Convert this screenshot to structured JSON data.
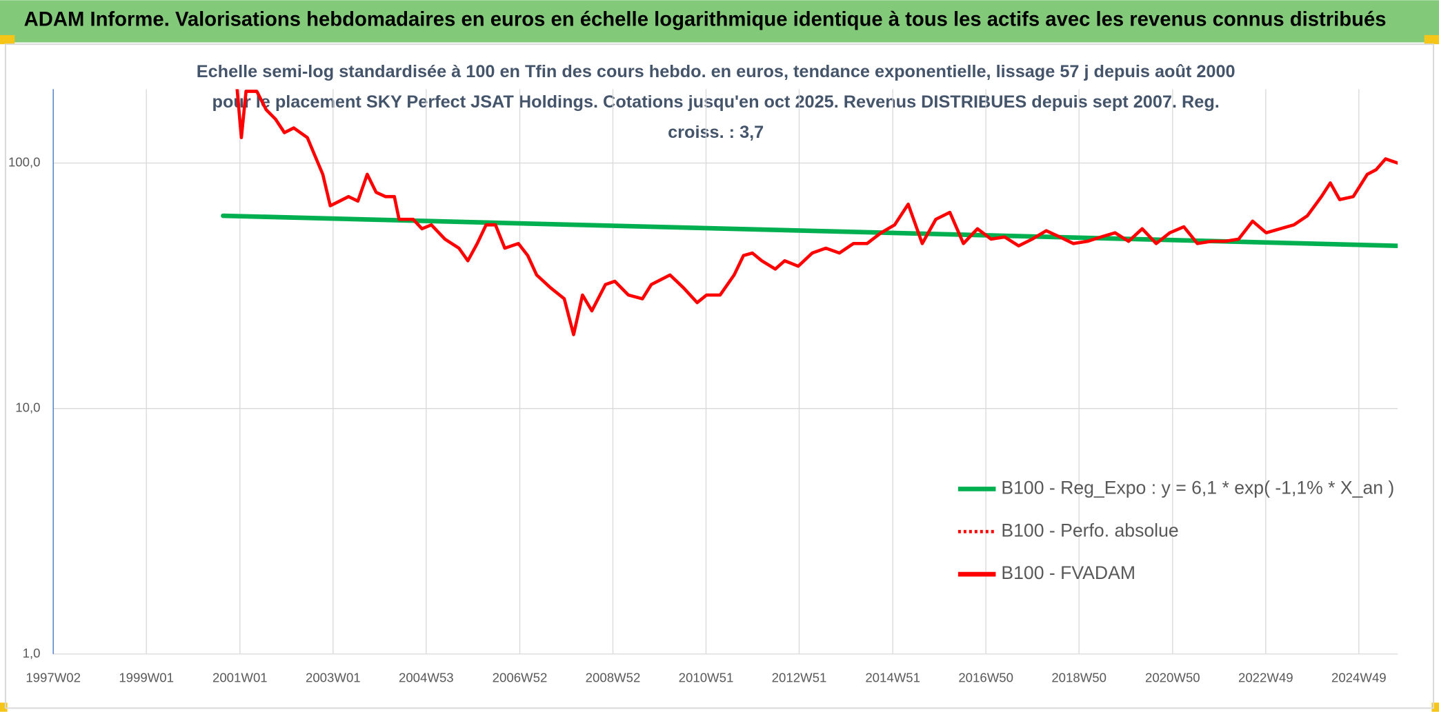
{
  "header": {
    "title": "ADAM Informe. Valorisations hebdomadaires en euros en échelle logarithmique identique à tous les actifs avec les revenus connus distribués"
  },
  "chart_data": {
    "type": "line",
    "title": "Echelle semi-log standardisée à 100 en Tfin des cours hebdo. en euros, tendance exponentielle, lissage 57 j depuis août 2000 pour le placement SKY Perfect JSAT Holdings. Cotations jusqu'en oct 2025. Revenus DISTRIBUES depuis sept 2007. Reg. croiss. : 3,7",
    "log_scale": true,
    "grid": true,
    "legend": "right",
    "xlim": [
      1997.02,
      2025.75
    ],
    "xticks": [
      {
        "value": 1997.02,
        "label": "1997W02"
      },
      {
        "value": 1999.01,
        "label": "1999W01"
      },
      {
        "value": 2001.01,
        "label": "2001W01"
      },
      {
        "value": 2003.0,
        "label": "2003W01"
      },
      {
        "value": 2004.99,
        "label": "2004W53"
      },
      {
        "value": 2006.99,
        "label": "2006W52"
      },
      {
        "value": 2008.98,
        "label": "2008W52"
      },
      {
        "value": 2010.97,
        "label": "2010W51"
      },
      {
        "value": 2012.96,
        "label": "2012W51"
      },
      {
        "value": 2014.96,
        "label": "2014W51"
      },
      {
        "value": 2016.95,
        "label": "2016W50"
      },
      {
        "value": 2018.94,
        "label": "2018W50"
      },
      {
        "value": 2020.94,
        "label": "2020W50"
      },
      {
        "value": 2022.93,
        "label": "2022W49"
      },
      {
        "value": 2024.92,
        "label": "2024W49"
      }
    ],
    "ylim": [
      1,
      200
    ],
    "yticks": [
      {
        "value": 1,
        "label": "1,0"
      },
      {
        "value": 10,
        "label": "10,0"
      },
      {
        "value": 100,
        "label": "100,0"
      }
    ],
    "series": [
      {
        "name": "B100 - Reg_Expo : y = 6,1 * exp( -1,1% *  X_an )",
        "color": "#00b050",
        "style": "solid",
        "x": [
          2000.65,
          2025.75
        ],
        "values": [
          61,
          46
        ]
      },
      {
        "name": "B100 - Perfo. absolue",
        "color": "#ff0000",
        "style": "dotted",
        "x": [],
        "values": []
      },
      {
        "name": "B100 - FVADAM",
        "color": "#ff0000",
        "style": "solid",
        "x": [
          2000.94,
          2001.04,
          2001.14,
          2001.37,
          2001.57,
          2001.77,
          2001.96,
          2002.16,
          2002.45,
          2002.65,
          2002.78,
          2002.94,
          2003.14,
          2003.33,
          2003.53,
          2003.73,
          2003.92,
          2004.12,
          2004.31,
          2004.41,
          2004.71,
          2004.9,
          2005.1,
          2005.39,
          2005.69,
          2005.88,
          2006.08,
          2006.27,
          2006.47,
          2006.67,
          2006.96,
          2007.16,
          2007.35,
          2007.65,
          2007.94,
          2008.14,
          2008.33,
          2008.53,
          2008.82,
          2009.02,
          2009.31,
          2009.61,
          2009.8,
          2010.2,
          2010.49,
          2010.78,
          2010.98,
          2011.27,
          2011.57,
          2011.77,
          2011.96,
          2012.16,
          2012.45,
          2012.65,
          2012.94,
          2013.24,
          2013.53,
          2013.82,
          2014.12,
          2014.41,
          2014.71,
          2015.0,
          2015.29,
          2015.59,
          2015.88,
          2016.18,
          2016.47,
          2016.77,
          2017.06,
          2017.35,
          2017.65,
          2017.94,
          2018.24,
          2018.53,
          2018.82,
          2019.12,
          2019.41,
          2019.71,
          2020.0,
          2020.29,
          2020.59,
          2020.88,
          2021.18,
          2021.47,
          2021.77,
          2022.06,
          2022.35,
          2022.65,
          2022.94,
          2023.24,
          2023.53,
          2023.82,
          2024.12,
          2024.31,
          2024.51,
          2024.8,
          2025.1,
          2025.29,
          2025.49,
          2025.75
        ],
        "values": [
          210,
          127,
          196,
          196,
          165,
          151,
          133,
          139,
          127,
          103,
          90,
          67,
          70,
          73,
          70,
          90,
          76,
          73,
          73,
          59,
          59,
          54,
          56,
          49,
          45,
          40,
          47,
          56,
          56,
          45,
          47,
          42,
          35,
          31,
          28,
          20,
          29,
          25,
          32,
          33,
          29,
          28,
          32,
          35,
          31,
          27,
          29,
          29,
          35,
          42,
          43,
          40,
          37,
          40,
          38,
          43,
          45,
          43,
          47,
          47,
          52,
          56,
          68,
          47,
          59,
          63,
          47,
          54,
          49,
          50,
          46,
          49,
          53,
          50,
          47,
          48,
          50,
          52,
          48,
          54,
          47,
          52,
          55,
          47,
          48,
          48,
          49,
          58,
          52,
          54,
          56,
          61,
          73,
          83,
          71,
          73,
          90,
          94,
          104,
          100
        ]
      }
    ]
  }
}
